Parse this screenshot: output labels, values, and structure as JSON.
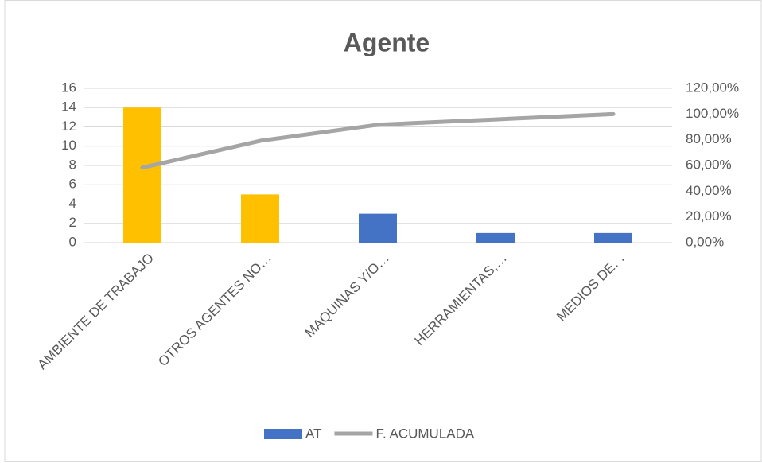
{
  "chart_data": {
    "type": "pareto",
    "title": "Agente",
    "categories": [
      "AMBIENTE DE TRABAJO",
      "OTROS AGENTES NO…",
      "MAQUINAS Y/O…",
      "HERRAMIENTAS,…",
      "MEDIOS DE…"
    ],
    "series": [
      {
        "name": "AT",
        "type": "bar",
        "color": "#4472c4",
        "bar_colors": [
          "#ffc000",
          "#ffc000",
          "#4472c4",
          "#4472c4",
          "#4472c4"
        ],
        "values": [
          14,
          5,
          3,
          1,
          1
        ]
      },
      {
        "name": "F. ACUMULADA",
        "type": "line",
        "axis": "y2",
        "color": "#a5a5a5",
        "values": [
          58.33,
          79.17,
          91.67,
          95.83,
          100
        ]
      }
    ],
    "ylim": [
      0,
      16
    ],
    "yticks": [
      0,
      2,
      4,
      6,
      8,
      10,
      12,
      14,
      16
    ],
    "y2lim": [
      0,
      120
    ],
    "y2ticks": [
      {
        "value": 0,
        "label": "0,00%"
      },
      {
        "value": 20,
        "label": "20,00%"
      },
      {
        "value": 40,
        "label": "40,00%"
      },
      {
        "value": 60,
        "label": "60,00%"
      },
      {
        "value": 80,
        "label": "80,00%"
      },
      {
        "value": 100,
        "label": "100,00%"
      },
      {
        "value": 120,
        "label": "120,00%"
      }
    ],
    "grid": true,
    "legend": "bottom"
  }
}
